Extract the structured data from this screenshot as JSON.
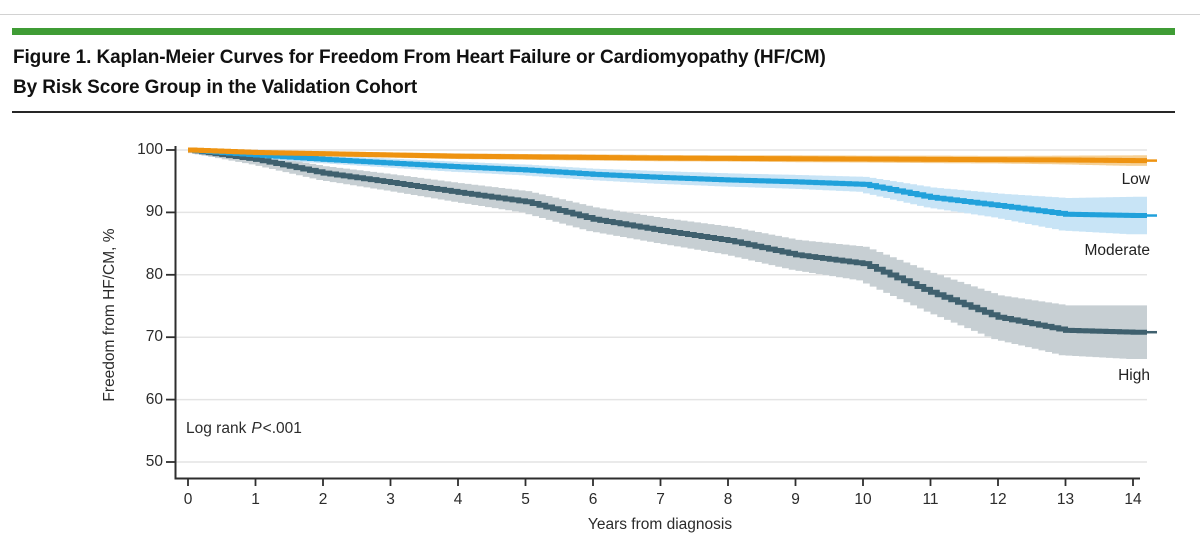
{
  "page": {
    "title_line1": "Figure 1. Kaplan-Meier Curves for Freedom From Heart Failure or Cardiomyopathy (HF/CM)",
    "title_line2": "By Risk Score Group in the Validation Cohort",
    "accent_color": "#3f9c35"
  },
  "chart_data": {
    "type": "line",
    "subtype": "kaplan-meier-step-curves-with-confidence-bands",
    "xlabel": "Years from diagnosis",
    "ylabel": "Freedom from HF/CM, %",
    "xlim": [
      0,
      14
    ],
    "ylim": [
      50,
      100
    ],
    "x_ticks": [
      0,
      1,
      2,
      3,
      4,
      5,
      6,
      7,
      8,
      9,
      10,
      11,
      12,
      13,
      14
    ],
    "y_ticks": [
      50,
      60,
      70,
      80,
      90,
      100
    ],
    "grid": "horizontal-light",
    "gridline_color": "#e4e4e4",
    "axis_color": "#2e2e2e",
    "annotation": {
      "prefix": "Log rank",
      "stat": "P",
      "value": "<.001"
    },
    "x": [
      0,
      1,
      2,
      3,
      4,
      5,
      6,
      7,
      8,
      9,
      10,
      11,
      12,
      13,
      14
    ],
    "series": [
      {
        "name": "Low",
        "color": "#ee9311",
        "ci_color": "#f5d096",
        "values": [
          100,
          99.6,
          99.4,
          99.2,
          99.0,
          98.9,
          98.8,
          98.7,
          98.65,
          98.6,
          98.55,
          98.5,
          98.45,
          98.4,
          98.3
        ],
        "ci_halfwidth": [
          0.25,
          0.35,
          0.4,
          0.4,
          0.45,
          0.45,
          0.5,
          0.5,
          0.5,
          0.55,
          0.55,
          0.6,
          0.6,
          0.7,
          0.85
        ]
      },
      {
        "name": "Moderate",
        "color": "#21a1db",
        "ci_color": "#c8e4f6",
        "values": [
          100,
          99.2,
          98.5,
          97.9,
          97.3,
          96.8,
          96.1,
          95.6,
          95.2,
          94.9,
          94.5,
          92.4,
          91.1,
          89.7,
          89.5
        ],
        "ci_halfwidth": [
          0.25,
          0.5,
          0.6,
          0.7,
          0.8,
          0.85,
          0.9,
          1.0,
          1.05,
          1.1,
          1.2,
          1.6,
          1.9,
          2.6,
          3.0
        ]
      },
      {
        "name": "High",
        "color": "#3f606e",
        "ci_color": "#c7cfd3",
        "values": [
          100,
          98.5,
          96.3,
          94.8,
          93.2,
          91.7,
          88.9,
          87.1,
          85.5,
          83.2,
          81.8,
          77.2,
          73.2,
          71.1,
          70.8
        ],
        "ci_halfwidth": [
          0.3,
          0.8,
          1.1,
          1.3,
          1.5,
          1.7,
          1.9,
          2.0,
          2.2,
          2.4,
          2.7,
          3.1,
          3.5,
          4.0,
          4.3
        ]
      }
    ]
  }
}
